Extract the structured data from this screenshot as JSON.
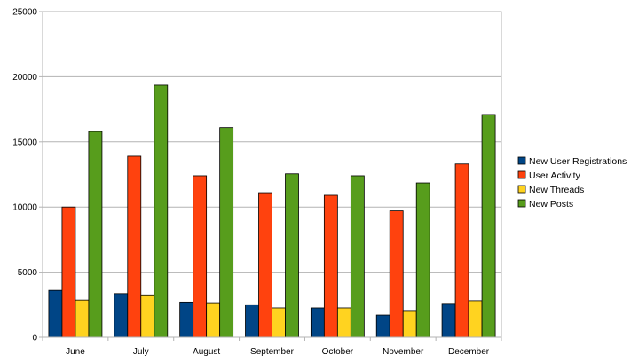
{
  "chart_data": {
    "type": "bar",
    "categories": [
      "June",
      "July",
      "August",
      "September",
      "October",
      "November",
      "December"
    ],
    "series": [
      {
        "name": "New User Registrations",
        "color": "#004586",
        "values": [
          3600,
          3350,
          2700,
          2500,
          2250,
          1700,
          2600
        ]
      },
      {
        "name": "User Activity",
        "color": "#ff420e",
        "values": [
          10000,
          13900,
          12400,
          11100,
          10900,
          9700,
          13300
        ]
      },
      {
        "name": "New Threads",
        "color": "#ffd320",
        "values": [
          2850,
          3250,
          2650,
          2250,
          2250,
          2050,
          2800
        ]
      },
      {
        "name": "New Posts",
        "color": "#579d1c",
        "values": [
          15800,
          19350,
          16100,
          12550,
          12400,
          11850,
          17100
        ]
      }
    ],
    "y_ticks": [
      "0",
      "5000",
      "10000",
      "15000",
      "20000",
      "25000"
    ],
    "ylim": [
      0,
      25000
    ],
    "title": "",
    "xlabel": "",
    "ylabel": "",
    "grid": "horizontal",
    "legend_position": "right"
  }
}
